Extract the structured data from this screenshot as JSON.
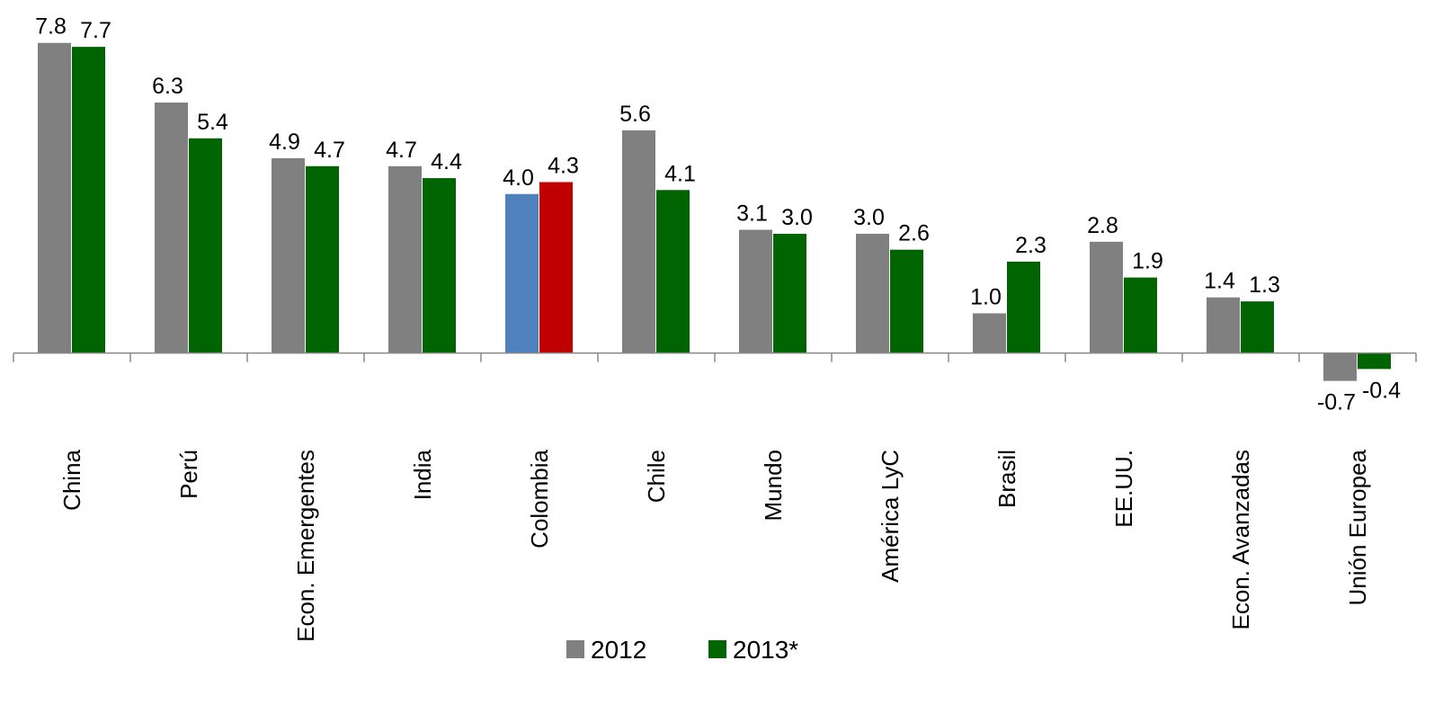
{
  "chart_data": {
    "type": "bar",
    "categories": [
      "China",
      "Perú",
      "Econ. Emergentes",
      "India",
      "Colombia",
      "Chile",
      "Mundo",
      "América LyC",
      "Brasil",
      "EE.UU.",
      "Econ. Avanzadas",
      "Unión Europea"
    ],
    "series": [
      {
        "name": "2012",
        "color": "#808080",
        "colors": [
          "#808080",
          "#808080",
          "#808080",
          "#808080",
          "#4f81bd",
          "#808080",
          "#808080",
          "#808080",
          "#808080",
          "#808080",
          "#808080",
          "#808080"
        ],
        "values": [
          7.8,
          6.3,
          4.9,
          4.7,
          4.0,
          5.6,
          3.1,
          3.0,
          1.0,
          2.8,
          1.4,
          -0.7
        ],
        "value_labels": [
          "7.8",
          "6.3",
          "4.9",
          "4.7",
          "4.0",
          "5.6",
          "3.1",
          "3.0",
          "1.0",
          "2.8",
          "1.4",
          "-0.7"
        ]
      },
      {
        "name": "2013*",
        "color": "#006400",
        "colors": [
          "#006400",
          "#006400",
          "#006400",
          "#006400",
          "#c00000",
          "#006400",
          "#006400",
          "#006400",
          "#006400",
          "#006400",
          "#006400",
          "#006400"
        ],
        "values": [
          7.7,
          5.4,
          4.7,
          4.4,
          4.3,
          4.1,
          3.0,
          2.6,
          2.3,
          1.9,
          1.3,
          -0.4
        ],
        "value_labels": [
          "7.7",
          "5.4",
          "4.7",
          "4.4",
          "4.3",
          "4.1",
          "3.0",
          "2.6",
          "2.3",
          "1.9",
          "1.3",
          "-0.4"
        ]
      }
    ],
    "ylim": [
      -1.5,
      8.2
    ]
  }
}
